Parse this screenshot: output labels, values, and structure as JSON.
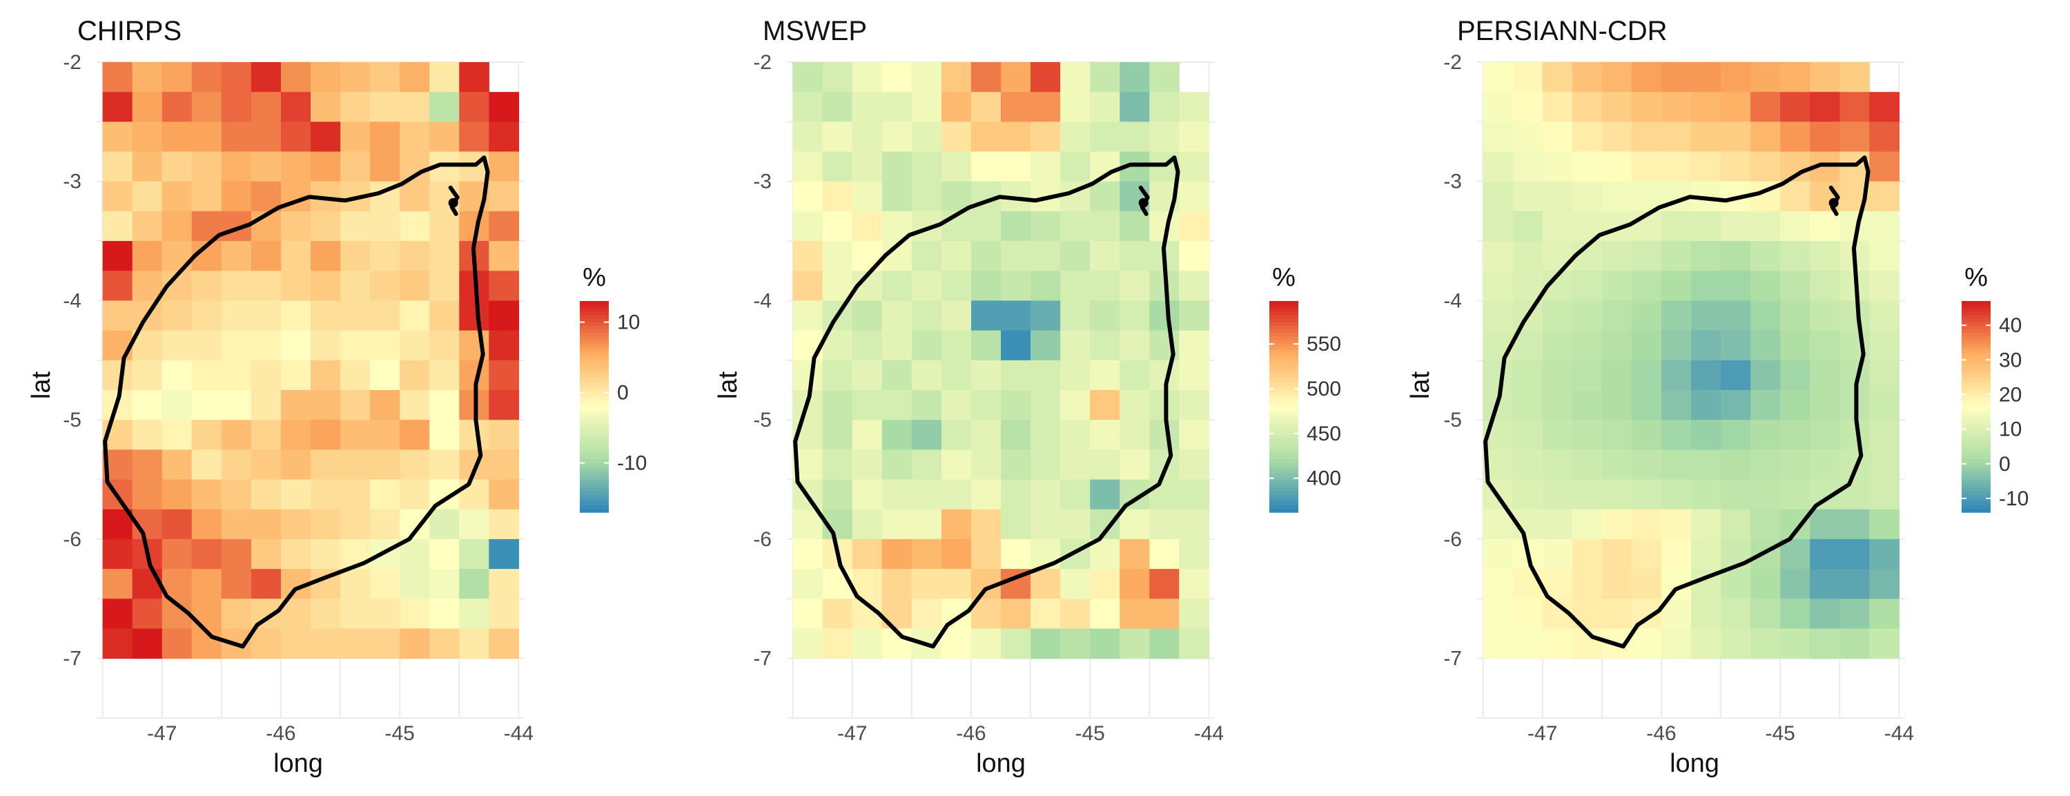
{
  "chart_data": [
    {
      "type": "heatmap",
      "title": "CHIRPS",
      "xlabel": "long",
      "ylabel": "lat",
      "xlim": [
        -47.55,
        -43.95
      ],
      "ylim": [
        -7.5,
        -2.0
      ],
      "x_ticks": [
        -47,
        -46,
        -45,
        -44
      ],
      "x_tick_labels": [
        "-47",
        "-46",
        "-45",
        "-44"
      ],
      "y_ticks": [
        -2,
        -3,
        -4,
        -5,
        -6,
        -7
      ],
      "y_tick_labels": [
        "-2",
        "-3",
        "-4",
        "-5",
        "-6",
        "-7"
      ],
      "grid_origin": {
        "long_west": -47.5,
        "lat_top": -2.25,
        "cell_deg": 0.25
      },
      "missing_value": null,
      "values": [
        [
          8,
          5,
          6,
          8,
          9,
          12,
          7,
          5,
          4,
          3,
          5,
          0,
          12,
          null
        ],
        [
          12,
          6,
          9,
          7,
          9,
          8,
          11,
          4,
          2,
          1,
          1,
          -8,
          10,
          13
        ],
        [
          4,
          5,
          6,
          6,
          8,
          8,
          10,
          12,
          4,
          6,
          3,
          4,
          9,
          12
        ],
        [
          1,
          4,
          2,
          3,
          5,
          4,
          5,
          6,
          3,
          6,
          3,
          0,
          1,
          5
        ],
        [
          3,
          1,
          4,
          3,
          6,
          7,
          5,
          3,
          2,
          0,
          3,
          1,
          4,
          3
        ],
        [
          0,
          3,
          5,
          8,
          8,
          5,
          3,
          2,
          0,
          0,
          -1,
          1,
          6,
          8
        ],
        [
          15,
          6,
          4,
          6,
          4,
          6,
          2,
          6,
          2,
          1,
          2,
          1,
          10,
          4
        ],
        [
          10,
          4,
          3,
          2,
          1,
          1,
          2,
          3,
          1,
          2,
          3,
          1,
          12,
          10
        ],
        [
          3,
          3,
          2,
          1,
          0,
          0,
          -1,
          1,
          1,
          1,
          -1,
          2,
          12,
          13
        ],
        [
          5,
          1,
          0,
          0,
          -1,
          -1,
          -2,
          0,
          -1,
          -1,
          0,
          1,
          5,
          12
        ],
        [
          1,
          0,
          -2,
          -1,
          -1,
          0,
          -1,
          3,
          0,
          -2,
          2,
          0,
          6,
          10
        ],
        [
          -1,
          -2,
          -3,
          -2,
          -2,
          0,
          4,
          4,
          2,
          5,
          0,
          -2,
          7,
          11
        ],
        [
          2,
          0,
          -1,
          2,
          4,
          2,
          5,
          6,
          4,
          4,
          6,
          -2,
          1,
          2
        ],
        [
          8,
          7,
          4,
          0,
          2,
          3,
          4,
          2,
          2,
          2,
          1,
          0,
          3,
          3
        ],
        [
          9,
          7,
          6,
          4,
          3,
          1,
          0,
          1,
          1,
          -1,
          0,
          -2,
          0,
          4
        ],
        [
          14,
          9,
          10,
          6,
          4,
          4,
          3,
          2,
          1,
          0,
          -2,
          -5,
          -3,
          0
        ],
        [
          12,
          11,
          8,
          9,
          8,
          3,
          1,
          0,
          -1,
          -3,
          -4,
          -2,
          -6,
          -16
        ],
        [
          7,
          12,
          7,
          6,
          8,
          10,
          4,
          2,
          0,
          -1,
          -4,
          -3,
          -9,
          0
        ],
        [
          13,
          10,
          7,
          6,
          3,
          2,
          2,
          1,
          0,
          0,
          -1,
          -2,
          -4,
          0
        ],
        [
          12,
          14,
          8,
          6,
          4,
          3,
          2,
          2,
          2,
          2,
          4,
          2,
          0,
          3
        ]
      ],
      "legend": {
        "title": "%",
        "range": [
          -17,
          13
        ],
        "ticks": [
          10,
          0,
          -10
        ],
        "tick_labels": [
          "10",
          "0",
          "-10"
        ]
      }
    },
    {
      "type": "heatmap",
      "title": "MSWEP",
      "xlabel": "long",
      "ylabel": "lat",
      "xlim": [
        -47.55,
        -43.95
      ],
      "ylim": [
        -7.5,
        -2.0
      ],
      "x_ticks": [
        -47,
        -46,
        -45,
        -44
      ],
      "x_tick_labels": [
        "-47",
        "-46",
        "-45",
        "-44"
      ],
      "y_ticks": [
        -2,
        -3,
        -4,
        -5,
        -6,
        -7
      ],
      "y_tick_labels": [
        "-2",
        "-3",
        "-4",
        "-5",
        "-6",
        "-7"
      ],
      "grid_origin": {
        "long_west": -47.5,
        "lat_top": -2.25,
        "cell_deg": 0.25
      },
      "missing_value": null,
      "values": [
        [
          440,
          450,
          470,
          480,
          470,
          520,
          560,
          540,
          580,
          470,
          440,
          410,
          440,
          null
        ],
        [
          450,
          440,
          460,
          460,
          470,
          530,
          510,
          550,
          550,
          470,
          460,
          400,
          450,
          460
        ],
        [
          460,
          470,
          460,
          470,
          460,
          500,
          520,
          520,
          510,
          460,
          450,
          450,
          460,
          470
        ],
        [
          470,
          450,
          460,
          440,
          450,
          460,
          480,
          480,
          470,
          450,
          470,
          420,
          450,
          460
        ],
        [
          480,
          490,
          470,
          440,
          450,
          440,
          450,
          460,
          470,
          460,
          440,
          410,
          460,
          470
        ],
        [
          470,
          480,
          490,
          470,
          460,
          450,
          450,
          430,
          440,
          450,
          450,
          430,
          470,
          490
        ],
        [
          500,
          470,
          480,
          470,
          450,
          460,
          440,
          450,
          450,
          440,
          460,
          450,
          450,
          480
        ],
        [
          510,
          470,
          460,
          450,
          460,
          450,
          430,
          440,
          430,
          450,
          450,
          460,
          440,
          460
        ],
        [
          470,
          450,
          440,
          460,
          450,
          460,
          380,
          380,
          390,
          450,
          440,
          450,
          420,
          440
        ],
        [
          480,
          460,
          450,
          460,
          440,
          450,
          430,
          370,
          410,
          460,
          450,
          460,
          440,
          470
        ],
        [
          470,
          450,
          460,
          440,
          460,
          450,
          460,
          450,
          450,
          460,
          470,
          450,
          460,
          470
        ],
        [
          460,
          440,
          450,
          450,
          440,
          460,
          450,
          440,
          450,
          470,
          520,
          460,
          450,
          460
        ],
        [
          460,
          440,
          470,
          420,
          410,
          450,
          460,
          430,
          450,
          460,
          470,
          460,
          440,
          470
        ],
        [
          470,
          450,
          460,
          440,
          450,
          470,
          460,
          440,
          450,
          460,
          460,
          470,
          450,
          460
        ],
        [
          460,
          440,
          470,
          460,
          460,
          460,
          470,
          450,
          460,
          450,
          400,
          440,
          450,
          450
        ],
        [
          470,
          430,
          460,
          470,
          470,
          530,
          510,
          450,
          460,
          460,
          440,
          470,
          460,
          460
        ],
        [
          480,
          490,
          510,
          540,
          530,
          540,
          510,
          480,
          470,
          450,
          470,
          530,
          480,
          460
        ],
        [
          470,
          480,
          490,
          510,
          500,
          500,
          520,
          560,
          510,
          470,
          490,
          540,
          570,
          470
        ],
        [
          480,
          500,
          490,
          510,
          490,
          480,
          510,
          520,
          490,
          500,
          480,
          530,
          530,
          460
        ],
        [
          470,
          490,
          470,
          480,
          470,
          480,
          470,
          450,
          420,
          430,
          420,
          440,
          420,
          450
        ]
      ],
      "legend": {
        "title": "%",
        "range": [
          362,
          598
        ],
        "ticks": [
          550,
          500,
          450,
          400
        ],
        "tick_labels": [
          "550",
          "500",
          "450",
          "400"
        ]
      }
    },
    {
      "type": "heatmap",
      "title": "PERSIANN-CDR",
      "xlabel": "long",
      "ylabel": "lat",
      "xlim": [
        -47.55,
        -43.95
      ],
      "ylim": [
        -7.5,
        -2.0
      ],
      "x_ticks": [
        -47,
        -46,
        -45,
        -44
      ],
      "x_tick_labels": [
        "-47",
        "-46",
        "-45",
        "-44"
      ],
      "y_ticks": [
        -2,
        -3,
        -4,
        -5,
        -6,
        -7
      ],
      "y_tick_labels": [
        "-2",
        "-3",
        "-4",
        "-5",
        "-6",
        "-7"
      ],
      "grid_origin": {
        "long_west": -47.5,
        "lat_top": -2.25,
        "cell_deg": 0.25
      },
      "missing_value": null,
      "values": [
        [
          16,
          18,
          24,
          28,
          30,
          33,
          34,
          34,
          33,
          32,
          31,
          28,
          26,
          null
        ],
        [
          15,
          17,
          20,
          24,
          26,
          28,
          29,
          30,
          31,
          38,
          42,
          44,
          40,
          44
        ],
        [
          14,
          15,
          17,
          20,
          22,
          24,
          24,
          26,
          26,
          30,
          34,
          37,
          36,
          40
        ],
        [
          12,
          14,
          15,
          16,
          17,
          19,
          19,
          20,
          22,
          24,
          26,
          28,
          24,
          36
        ],
        [
          10,
          12,
          12,
          13,
          14,
          14,
          14,
          15,
          16,
          18,
          22,
          26,
          24,
          24
        ],
        [
          10,
          8,
          12,
          12,
          12,
          12,
          10,
          10,
          12,
          12,
          14,
          16,
          14,
          14
        ],
        [
          12,
          10,
          11,
          10,
          9,
          8,
          6,
          4,
          3,
          6,
          8,
          10,
          12,
          14
        ],
        [
          11,
          10,
          9,
          8,
          6,
          4,
          2,
          0,
          0,
          2,
          5,
          8,
          10,
          12
        ],
        [
          10,
          9,
          7,
          6,
          4,
          2,
          -1,
          -3,
          -3,
          0,
          3,
          6,
          7,
          10
        ],
        [
          9,
          8,
          6,
          5,
          3,
          1,
          -2,
          -5,
          -4,
          -1,
          2,
          4,
          6,
          9
        ],
        [
          8,
          7,
          5,
          4,
          2,
          0,
          -4,
          -8,
          -10,
          -3,
          0,
          3,
          5,
          8
        ],
        [
          8,
          7,
          5,
          3,
          2,
          0,
          -3,
          -6,
          -5,
          -1,
          1,
          3,
          5,
          7
        ],
        [
          9,
          8,
          6,
          5,
          4,
          2,
          0,
          -1,
          0,
          2,
          3,
          4,
          6,
          8
        ],
        [
          10,
          9,
          8,
          7,
          6,
          5,
          4,
          4,
          3,
          4,
          5,
          6,
          7,
          8
        ],
        [
          11,
          10,
          9,
          9,
          9,
          8,
          7,
          6,
          5,
          5,
          6,
          7,
          7,
          8
        ],
        [
          13,
          12,
          12,
          14,
          18,
          19,
          18,
          12,
          8,
          4,
          2,
          -2,
          -2,
          2
        ],
        [
          15,
          16,
          15,
          20,
          22,
          20,
          17,
          11,
          7,
          3,
          -2,
          -10,
          -10,
          -6
        ],
        [
          16,
          18,
          18,
          20,
          22,
          21,
          16,
          10,
          6,
          2,
          -3,
          -8,
          -8,
          -5
        ],
        [
          16,
          17,
          19,
          20,
          20,
          19,
          15,
          10,
          8,
          4,
          0,
          -3,
          -2,
          2
        ],
        [
          16,
          16,
          17,
          18,
          17,
          16,
          14,
          11,
          9,
          7,
          6,
          4,
          3,
          6
        ]
      ],
      "legend": {
        "title": "%",
        "range": [
          -14,
          47
        ],
        "ticks": [
          40,
          30,
          20,
          10,
          0,
          -10
        ],
        "tick_labels": [
          "40",
          "30",
          "20",
          "10",
          "0",
          "-10"
        ]
      }
    }
  ],
  "basin_outline_lonlat": [
    [
      -44.36,
      -2.86
    ],
    [
      -44.29,
      -2.8
    ],
    [
      -44.26,
      -2.92
    ],
    [
      -44.29,
      -3.15
    ],
    [
      -44.34,
      -3.34
    ],
    [
      -44.38,
      -3.56
    ],
    [
      -44.36,
      -3.85
    ],
    [
      -44.34,
      -4.15
    ],
    [
      -44.3,
      -4.45
    ],
    [
      -44.36,
      -4.7
    ],
    [
      -44.36,
      -5.0
    ],
    [
      -44.32,
      -5.3
    ],
    [
      -44.42,
      -5.54
    ],
    [
      -44.7,
      -5.72
    ],
    [
      -44.92,
      -6.0
    ],
    [
      -45.3,
      -6.2
    ],
    [
      -45.62,
      -6.32
    ],
    [
      -45.88,
      -6.42
    ],
    [
      -46.02,
      -6.6
    ],
    [
      -46.2,
      -6.72
    ],
    [
      -46.32,
      -6.9
    ],
    [
      -46.58,
      -6.82
    ],
    [
      -46.78,
      -6.62
    ],
    [
      -46.96,
      -6.48
    ],
    [
      -47.1,
      -6.22
    ],
    [
      -47.16,
      -5.95
    ],
    [
      -47.32,
      -5.72
    ],
    [
      -47.46,
      -5.52
    ],
    [
      -47.48,
      -5.18
    ],
    [
      -47.36,
      -4.8
    ],
    [
      -47.32,
      -4.48
    ],
    [
      -47.16,
      -4.18
    ],
    [
      -46.96,
      -3.88
    ],
    [
      -46.72,
      -3.62
    ],
    [
      -46.52,
      -3.45
    ],
    [
      -46.26,
      -3.36
    ],
    [
      -46.02,
      -3.22
    ],
    [
      -45.76,
      -3.13
    ],
    [
      -45.46,
      -3.16
    ],
    [
      -45.18,
      -3.1
    ],
    [
      -44.98,
      -3.02
    ],
    [
      -44.82,
      -2.92
    ],
    [
      -44.66,
      -2.86
    ],
    [
      -44.52,
      -2.86
    ],
    [
      -44.36,
      -2.86
    ]
  ],
  "outlet_lonlat": [
    -44.55,
    -3.18
  ],
  "colors": {
    "palette_low_to_high": [
      "#2b83ba",
      "#abdda4",
      "#ffffbf",
      "#fdae61",
      "#d7191c"
    ],
    "outline": "#000000",
    "grid": "#ebebeb"
  }
}
